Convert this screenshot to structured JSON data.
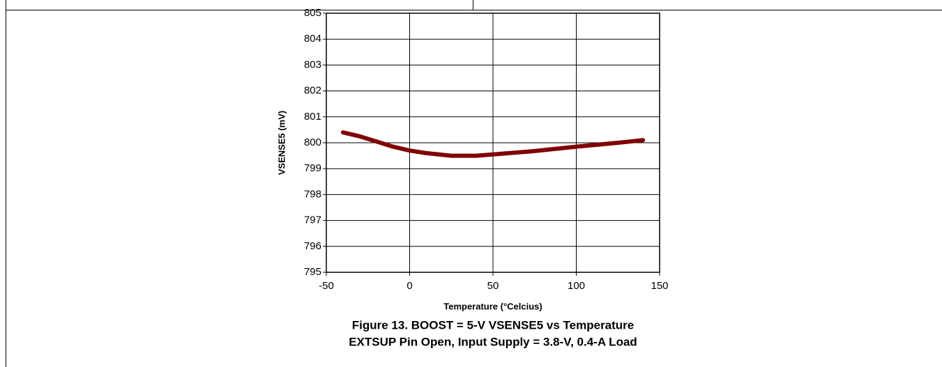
{
  "chart_data": {
    "type": "line",
    "title": "Figure 13. BOOST = 5-V VSENSE5 vs Temperature",
    "subtitle": "EXTSUP Pin Open, Input Supply = 3.8-V, 0.4-A Load",
    "xlabel": "Temperature (°Celcius)",
    "ylabel": "VSENSE5 (mV)",
    "x": [
      -40,
      -30,
      -20,
      -10,
      0,
      10,
      25,
      40,
      50,
      75,
      100,
      125,
      140
    ],
    "series": [
      {
        "name": "VSENSE5",
        "color": "#800000",
        "values": [
          800.4,
          800.25,
          800.05,
          799.85,
          799.7,
          799.6,
          799.5,
          799.5,
          799.55,
          799.68,
          799.85,
          800.0,
          800.1
        ]
      }
    ],
    "xlim": [
      -50,
      150
    ],
    "xticks": [
      -50,
      0,
      50,
      100,
      150
    ],
    "ylim": [
      795,
      805
    ],
    "yticks": [
      795,
      796,
      797,
      798,
      799,
      800,
      801,
      802,
      803,
      804,
      805
    ],
    "grid": true
  }
}
